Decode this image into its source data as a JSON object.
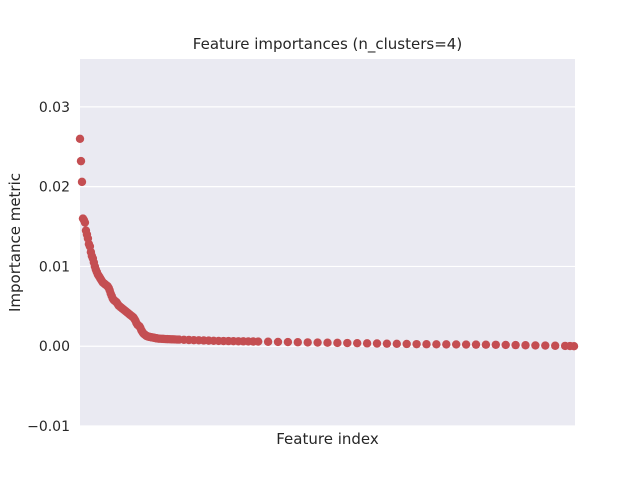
{
  "chart_data": {
    "type": "scatter",
    "title": "Feature importances (n_clusters=4)",
    "xlabel": "Feature index",
    "ylabel": "Importance metric",
    "xlim": [
      0,
      500
    ],
    "ylim": [
      -0.01,
      0.036
    ],
    "yticks": [
      -0.01,
      0.0,
      0.01,
      0.02,
      0.03
    ],
    "ytick_labels": [
      "−0.01",
      "0.00",
      "0.01",
      "0.02",
      "0.03"
    ],
    "x_ticks_shown": false,
    "grid": true,
    "colors": {
      "background": "#eaeaf2",
      "grid": "#ffffff",
      "marker": "#c44e52"
    },
    "series": [
      {
        "x": [
          0,
          1,
          2,
          3,
          4,
          5,
          6,
          7,
          8,
          9,
          10,
          11,
          12,
          13,
          14,
          15,
          16,
          17,
          18,
          19,
          20,
          21,
          22,
          23,
          24,
          25,
          26,
          27,
          28,
          29,
          30,
          31,
          32,
          33,
          34,
          35,
          36,
          37,
          38,
          39,
          40,
          41,
          42,
          43,
          44,
          45,
          46,
          47,
          48,
          49,
          50,
          51,
          52,
          53,
          54,
          55,
          56,
          57,
          58,
          59,
          60,
          61,
          62,
          63,
          64,
          65,
          66,
          67,
          68,
          69,
          70,
          71,
          72,
          73,
          74,
          75,
          76,
          77,
          78,
          79,
          80,
          82,
          84,
          86,
          88,
          90,
          92,
          94,
          96,
          98,
          100,
          105,
          110,
          115,
          120,
          125,
          130,
          135,
          140,
          145,
          150,
          155,
          160,
          165,
          170,
          175,
          180,
          190,
          200,
          210,
          220,
          230,
          240,
          250,
          260,
          270,
          280,
          290,
          300,
          310,
          320,
          330,
          340,
          350,
          360,
          370,
          380,
          390,
          400,
          410,
          420,
          430,
          440,
          450,
          460,
          470,
          480,
          490,
          495,
          499
        ],
        "y": [
          0.026,
          0.0232,
          0.0206,
          0.016,
          0.0158,
          0.0155,
          0.0145,
          0.014,
          0.0135,
          0.0128,
          0.0125,
          0.0118,
          0.0113,
          0.011,
          0.0105,
          0.01,
          0.0096,
          0.0093,
          0.009,
          0.0088,
          0.0086,
          0.0084,
          0.0082,
          0.008,
          0.0079,
          0.0078,
          0.0077,
          0.0076,
          0.0075,
          0.0073,
          0.007,
          0.0066,
          0.0063,
          0.006,
          0.0058,
          0.0057,
          0.0056,
          0.0055,
          0.0053,
          0.0051,
          0.005,
          0.0049,
          0.0048,
          0.0047,
          0.0046,
          0.0045,
          0.0044,
          0.0043,
          0.0042,
          0.0041,
          0.004,
          0.0039,
          0.0038,
          0.0037,
          0.0036,
          0.0034,
          0.0032,
          0.0029,
          0.0027,
          0.0026,
          0.0025,
          0.0023,
          0.002,
          0.0018,
          0.0016,
          0.0015,
          0.0014,
          0.0013,
          0.00125,
          0.0012,
          0.00118,
          0.00115,
          0.00112,
          0.0011,
          0.00108,
          0.00105,
          0.00102,
          0.001,
          0.00098,
          0.00096,
          0.00095,
          0.00093,
          0.00092,
          0.0009,
          0.00089,
          0.00088,
          0.00087,
          0.00086,
          0.00085,
          0.00084,
          0.00083,
          0.0008,
          0.00078,
          0.00076,
          0.00074,
          0.00072,
          0.0007,
          0.00068,
          0.00066,
          0.00065,
          0.00064,
          0.00063,
          0.00062,
          0.00061,
          0.0006,
          0.00059,
          0.00058,
          0.00056,
          0.00054,
          0.00052,
          0.0005,
          0.00048,
          0.00046,
          0.00044,
          0.00042,
          0.0004,
          0.00038,
          0.00036,
          0.00034,
          0.00032,
          0.0003,
          0.00028,
          0.00026,
          0.00025,
          0.00024,
          0.00023,
          0.00022,
          0.00021,
          0.0002,
          0.00019,
          0.00018,
          0.00016,
          0.00014,
          0.00012,
          0.0001,
          8e-05,
          6e-05,
          4e-05,
          2e-05,
          0.0
        ]
      }
    ]
  }
}
